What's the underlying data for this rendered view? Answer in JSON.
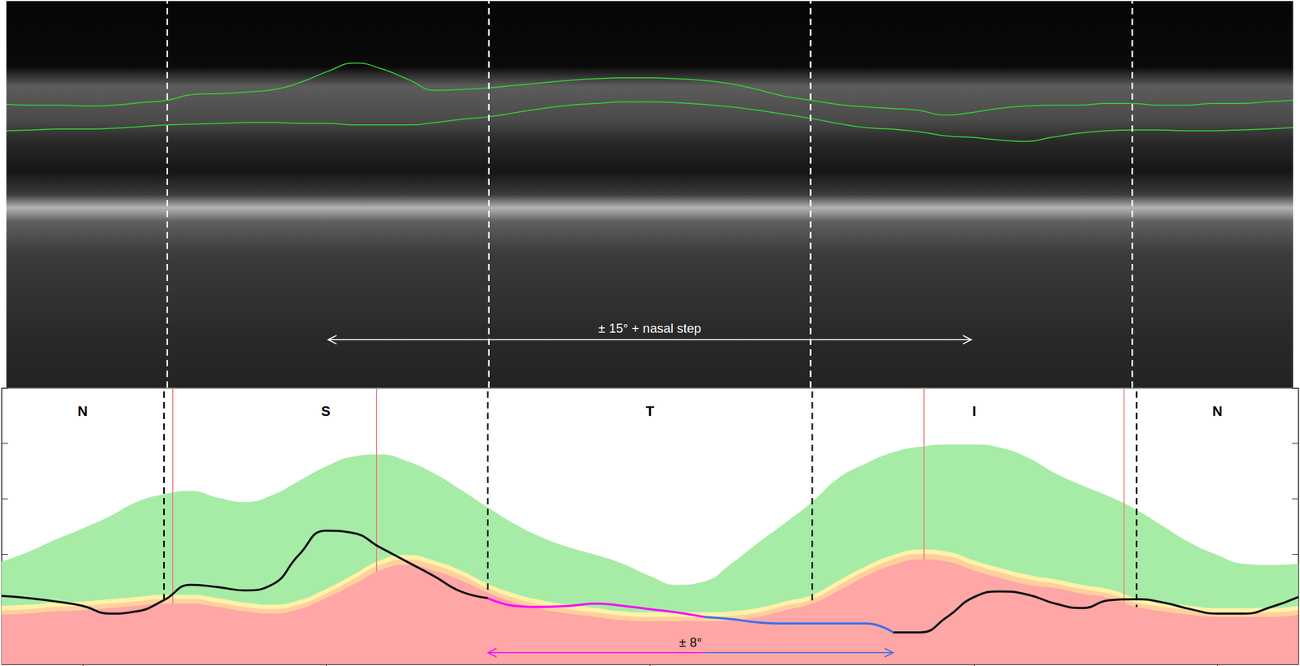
{
  "chart_data": [
    {
      "type": "line",
      "x": [
        0,
        7.5,
        15,
        22.5,
        30,
        37.5,
        45,
        52.5,
        60,
        67.5,
        75,
        82.5,
        90,
        97.5,
        105,
        112.5,
        120,
        127.5,
        135,
        142.5,
        150,
        157.5,
        165,
        172.5,
        180,
        187.5,
        195,
        202.5,
        210,
        217.5,
        225,
        232.5,
        240,
        247.5,
        255,
        262.5,
        270,
        277.5,
        285,
        292.5,
        300,
        307.5,
        315,
        322.5,
        330,
        337.5,
        345,
        352.5,
        360
      ],
      "xlim": [
        0,
        360
      ],
      "ylim": [
        0,
        468
      ],
      "tick_labels": false,
      "series": [
        {
          "color": "#33cc33",
          "values": [
            343,
            342,
            342,
            341,
            342,
            345,
            348,
            355,
            356,
            358,
            361,
            370,
            383,
            393,
            386,
            373,
            360,
            361,
            363,
            366,
            369,
            372,
            374,
            375,
            375,
            374,
            372,
            368,
            361,
            353,
            348,
            343,
            340,
            338,
            336,
            330,
            333,
            338,
            341,
            342,
            342,
            344,
            344,
            342,
            342,
            344,
            344,
            346,
            348
          ]
        },
        {
          "color": "#33cc33",
          "values": [
            311,
            312,
            313,
            313,
            314,
            316,
            318,
            319,
            320,
            321,
            321,
            320,
            320,
            318,
            318,
            318,
            321,
            325,
            328,
            333,
            338,
            342,
            344,
            346,
            346,
            345,
            343,
            340,
            336,
            331,
            326,
            320,
            315,
            313,
            310,
            305,
            303,
            300,
            298,
            303,
            308,
            311,
            312,
            312,
            311,
            311,
            312,
            313,
            315
          ]
        }
      ],
      "sector_boundaries": [
        45,
        135,
        225,
        315
      ],
      "annotations": [
        {
          "text": "± 15° + nasal step",
          "from": 90,
          "to": 270,
          "color": "#ffffff"
        }
      ]
    },
    {
      "type": "line",
      "x": [
        0,
        7.5,
        15,
        22.5,
        30,
        37.5,
        45,
        52.5,
        60,
        67.5,
        75,
        82.5,
        90,
        97.5,
        105,
        112.5,
        120,
        127.5,
        135,
        142.5,
        150,
        157.5,
        165,
        172.5,
        180,
        187.5,
        195,
        202.5,
        210,
        217.5,
        225,
        232.5,
        240,
        247.5,
        255,
        262.5,
        270,
        277.5,
        285,
        292.5,
        300,
        307.5,
        315,
        322.5,
        330,
        337.5,
        345,
        352.5,
        360
      ],
      "xlim": [
        0,
        360
      ],
      "xticks": [
        {
          "value": 22.5,
          "label": "N"
        },
        {
          "value": 90,
          "label": "S"
        },
        {
          "value": 180,
          "label": "T"
        },
        {
          "value": 270,
          "label": "I"
        },
        {
          "value": 337.5,
          "label": "N"
        }
      ],
      "ylim": [
        0,
        250
      ],
      "yticks": [
        0,
        50,
        100,
        150,
        200,
        250
      ],
      "tick_labels": "x",
      "series": [
        {
          "type": "area",
          "color": "#a6eca6",
          "values": [
            93,
            102,
            113,
            123,
            134,
            147,
            154,
            157,
            151,
            147,
            153,
            166,
            179,
            188,
            190,
            184,
            173,
            158,
            142,
            127,
            115,
            106,
            99,
            91,
            80,
            72,
            75,
            91,
            110,
            128,
            147,
            169,
            182,
            192,
            197,
            199,
            199,
            196,
            187,
            173,
            162,
            152,
            140,
            125,
            110,
            99,
            91,
            90,
            91
          ]
        },
        {
          "type": "area",
          "color": "#fff2a8",
          "values": [
            53,
            54,
            56,
            57,
            59,
            61,
            63,
            63,
            60,
            56,
            54,
            58,
            68,
            81,
            94,
            99,
            94,
            85,
            73,
            64,
            58,
            54,
            51,
            48,
            47,
            47,
            47,
            48,
            51,
            57,
            63,
            76,
            89,
            99,
            104,
            102,
            94,
            87,
            81,
            77,
            72,
            68,
            60,
            56,
            53,
            51,
            51,
            51,
            53
          ]
        },
        {
          "type": "area",
          "color": "#ffcf9e",
          "values": [
            49,
            50,
            52,
            53,
            55,
            57,
            59,
            59,
            56,
            52,
            50,
            54,
            64,
            77,
            90,
            95,
            90,
            81,
            69,
            60,
            54,
            50,
            47,
            44,
            43,
            43,
            43,
            44,
            47,
            53,
            59,
            72,
            85,
            95,
            100,
            98,
            90,
            83,
            77,
            73,
            68,
            64,
            56,
            52,
            49,
            47,
            47,
            47,
            49
          ]
        },
        {
          "type": "area",
          "color": "#ffa6a6",
          "values": [
            45,
            46,
            48,
            49,
            51,
            53,
            55,
            55,
            52,
            48,
            46,
            50,
            60,
            72,
            85,
            90,
            85,
            76,
            65,
            56,
            50,
            46,
            43,
            40,
            39,
            39,
            39,
            40,
            43,
            49,
            55,
            67,
            80,
            90,
            95,
            93,
            85,
            78,
            72,
            69,
            64,
            60,
            52,
            48,
            45,
            43,
            43,
            43,
            45
          ]
        },
        {
          "type": "line",
          "color": "#111111",
          "values": [
            62,
            60,
            57,
            53,
            46,
            48,
            58,
            72,
            70,
            67,
            72,
            99,
            121,
            119,
            106,
            93,
            80,
            66,
            60,
            null,
            null,
            null,
            null,
            null,
            null,
            null,
            null,
            null,
            null,
            null,
            null,
            null,
            null,
            29,
            29,
            43,
            61,
            66,
            63,
            55,
            51,
            58,
            59,
            56,
            50,
            46,
            46,
            52,
            61
          ]
        },
        {
          "type": "line",
          "color": "#ff00ff",
          "values": [
            null,
            null,
            null,
            null,
            null,
            null,
            null,
            null,
            null,
            null,
            null,
            null,
            null,
            null,
            null,
            null,
            null,
            null,
            60,
            53,
            52,
            53,
            55,
            53,
            50,
            47,
            43,
            null,
            null,
            null,
            null,
            null,
            null,
            null,
            null,
            null,
            null,
            null,
            null,
            null,
            null,
            null,
            null,
            null,
            null,
            null,
            null,
            null,
            null
          ]
        },
        {
          "type": "line",
          "color": "#3b6ef0",
          "values": [
            null,
            null,
            null,
            null,
            null,
            null,
            null,
            null,
            null,
            null,
            null,
            null,
            null,
            null,
            null,
            null,
            null,
            null,
            null,
            null,
            null,
            null,
            null,
            null,
            null,
            null,
            43,
            41,
            38,
            37,
            37,
            37,
            37,
            29,
            null,
            null,
            null,
            null,
            null,
            null,
            null,
            null,
            null,
            null,
            null,
            null,
            null,
            null,
            null
          ]
        }
      ],
      "sector_boundaries": [
        45,
        135,
        225,
        315
      ],
      "markers": [
        47.5,
        104,
        256,
        311.5
      ],
      "annotations": [
        {
          "text": "± 8°",
          "from": 135,
          "to": 247.5,
          "split": 195,
          "colors": [
            "#ff00ff",
            "#3b6ef0"
          ]
        }
      ]
    }
  ]
}
